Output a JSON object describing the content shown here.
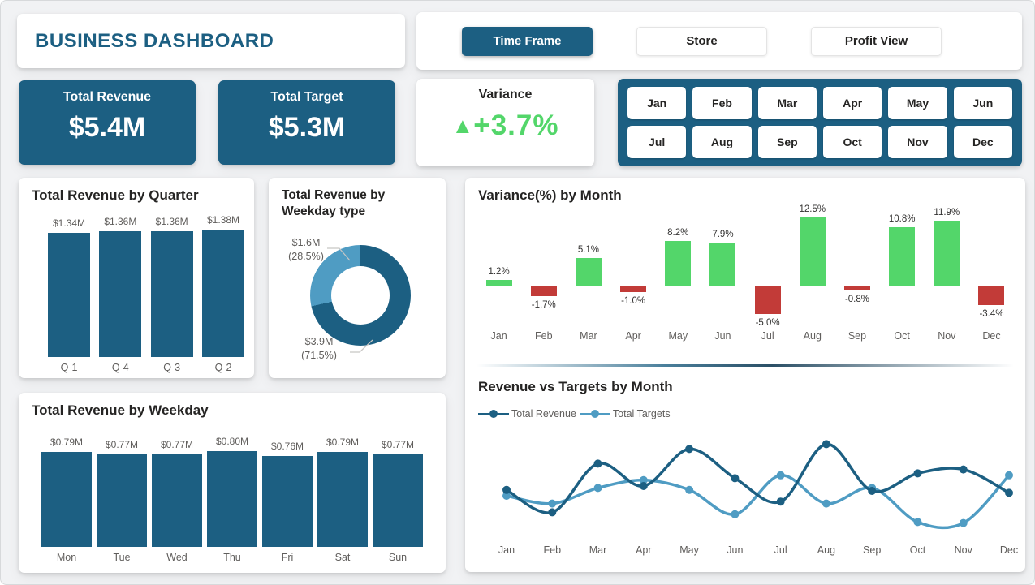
{
  "header": {
    "title": "BUSINESS DASHBOARD"
  },
  "nav": {
    "buttons": [
      {
        "label": "Time Frame",
        "active": true
      },
      {
        "label": "Store",
        "active": false
      },
      {
        "label": "Profit View",
        "active": false
      }
    ]
  },
  "kpis": {
    "revenue": {
      "label": "Total Revenue",
      "value": "$5.4M"
    },
    "target": {
      "label": "Total Target",
      "value": "$5.3M"
    },
    "variance": {
      "label": "Variance",
      "arrow": "▲",
      "value": "+3.7%"
    }
  },
  "slicer": {
    "months": [
      "Jan",
      "Feb",
      "Mar",
      "Apr",
      "May",
      "Jun",
      "Jul",
      "Aug",
      "Sep",
      "Oct",
      "Nov",
      "Dec"
    ]
  },
  "colors": {
    "primary": "#1C5F82",
    "accent_light": "#4F9CC3",
    "positive": "#53D66A",
    "negative": "#C23B38",
    "page_bg": "#F1F2F4",
    "text_dark": "#252423",
    "text_gray": "#605E5C"
  },
  "chart_data": [
    {
      "type": "bar",
      "title": "Total Revenue by Quarter",
      "categories": [
        "Q-1",
        "Q-4",
        "Q-3",
        "Q-2"
      ],
      "values": [
        1.34,
        1.36,
        1.36,
        1.38
      ],
      "labels": [
        "$1.34M",
        "$1.36M",
        "$1.36M",
        "$1.38M"
      ],
      "unit": "$M",
      "bar_color": "#1C5F82"
    },
    {
      "type": "pie",
      "title": "Total Revenue by Weekday type",
      "slices": [
        {
          "value": 3.9,
          "pct": 71.5,
          "value_label": "$3.9M",
          "pct_label": "(71.5%)",
          "color": "#1C5F82"
        },
        {
          "value": 1.6,
          "pct": 28.5,
          "value_label": "$1.6M",
          "pct_label": "(28.5%)",
          "color": "#4F9CC3"
        }
      ]
    },
    {
      "type": "bar",
      "title": "Variance(%) by Month",
      "categories": [
        "Jan",
        "Feb",
        "Mar",
        "Apr",
        "May",
        "Jun",
        "Jul",
        "Aug",
        "Sep",
        "Oct",
        "Nov",
        "Dec"
      ],
      "values": [
        1.2,
        -1.7,
        5.1,
        -1.0,
        8.2,
        7.9,
        -5.0,
        12.5,
        -0.8,
        10.8,
        11.9,
        -3.4
      ],
      "labels": [
        "1.2%",
        "-1.7%",
        "5.1%",
        "-1.0%",
        "8.2%",
        "7.9%",
        "-5.0%",
        "12.5%",
        "-0.8%",
        "10.8%",
        "11.9%",
        "-3.4%"
      ],
      "unit": "%",
      "positive_color": "#53D66A",
      "negative_color": "#C23B38"
    },
    {
      "type": "bar",
      "title": "Total Revenue by Weekday",
      "categories": [
        "Mon",
        "Tue",
        "Wed",
        "Thu",
        "Fri",
        "Sat",
        "Sun"
      ],
      "values": [
        0.79,
        0.77,
        0.77,
        0.8,
        0.76,
        0.79,
        0.77
      ],
      "labels": [
        "$0.79M",
        "$0.77M",
        "$0.77M",
        "$0.80M",
        "$0.76M",
        "$0.79M",
        "$0.77M"
      ],
      "unit": "$M",
      "bar_color": "#1C5F82"
    },
    {
      "type": "line",
      "title": "Revenue vs Targets by Month",
      "categories": [
        "Jan",
        "Feb",
        "Mar",
        "Apr",
        "May",
        "Jun",
        "Jul",
        "Aug",
        "Sep",
        "Oct",
        "Nov",
        "Dec"
      ],
      "series": [
        {
          "name": "Total Revenue",
          "color": "#1C5F82",
          "values": [
            46,
            23,
            73,
            50,
            88,
            58,
            34,
            93,
            45,
            63,
            67,
            43
          ]
        },
        {
          "name": "Total Targets",
          "color": "#4F9CC3",
          "values": [
            40,
            32,
            48,
            56,
            46,
            21,
            61,
            32,
            48,
            13,
            12,
            61
          ]
        }
      ],
      "ylim": [
        0,
        100
      ],
      "units": "relative (no y-axis labels shown; estimated from plot)",
      "legend_position": "top-left",
      "grid": false
    }
  ]
}
